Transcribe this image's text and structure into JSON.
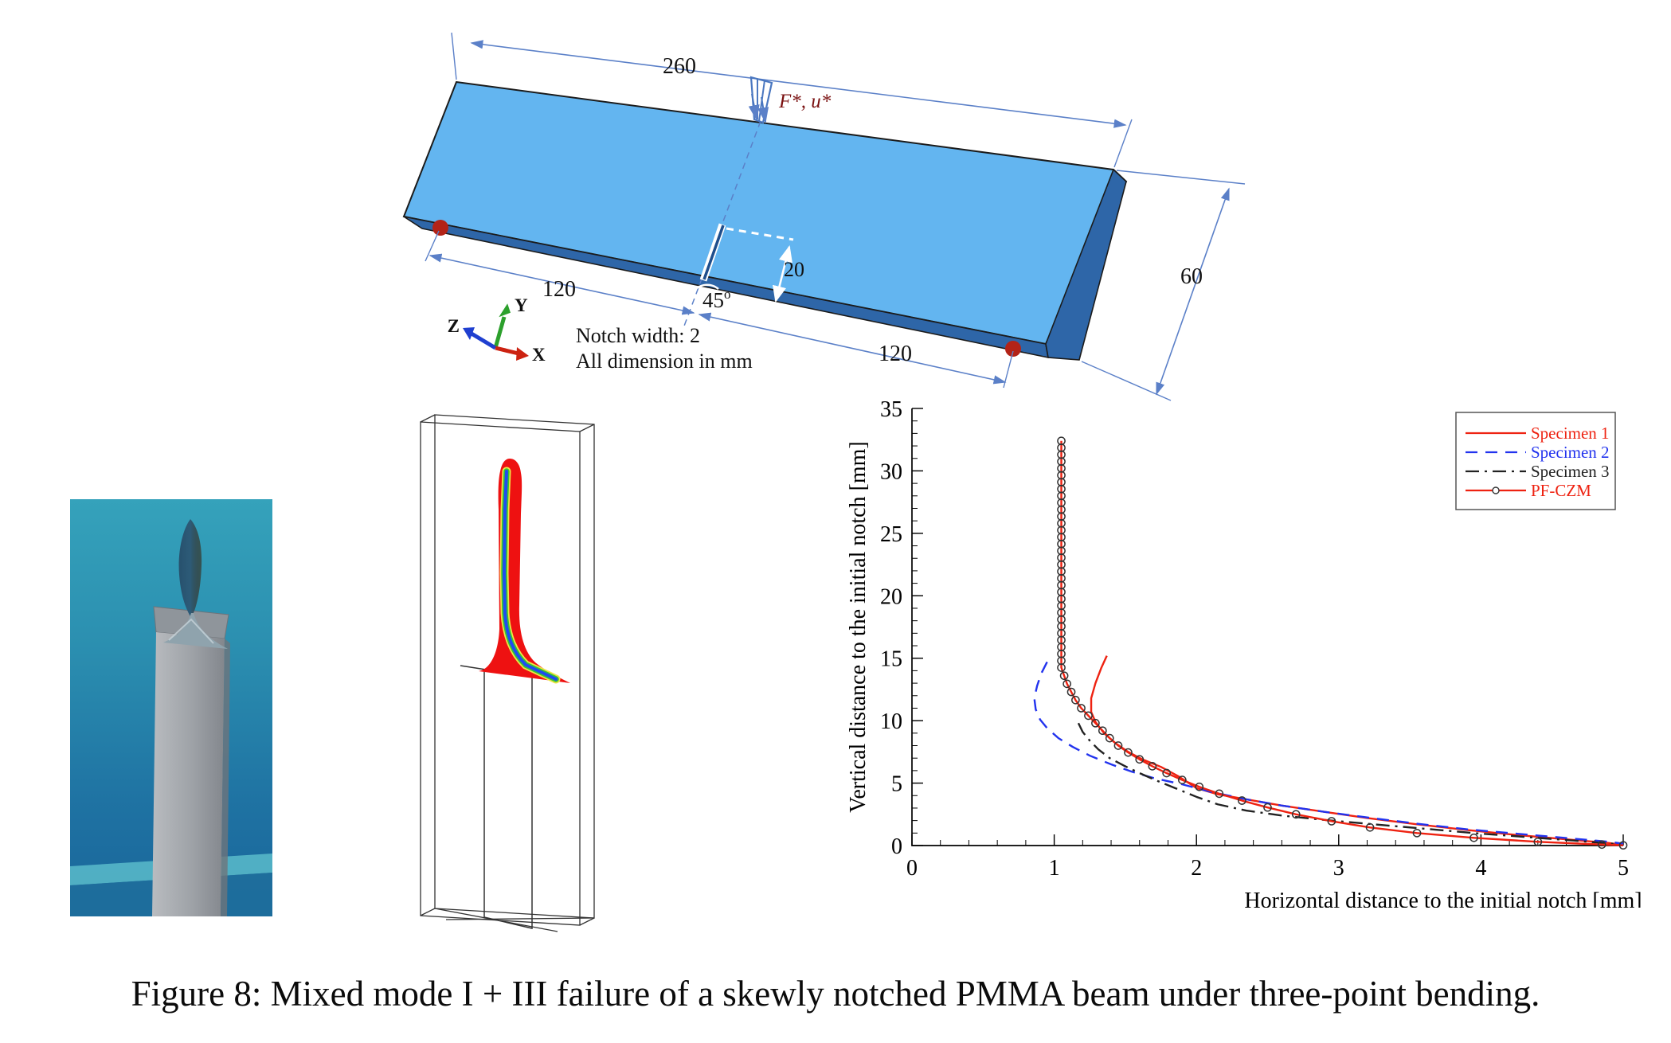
{
  "figure": {
    "caption": "Figure 8: Mixed mode I + III failure of a skewly notched PMMA beam under three-point bending."
  },
  "beam": {
    "labels": {
      "total": "260",
      "left_span": "120",
      "right_span": "120",
      "depth": "60",
      "notch_depth": "20",
      "angle": "45",
      "degree": "o",
      "load": "F*, u*",
      "note1": "Notch width: 2",
      "note2": "All dimension in mm",
      "x": "X",
      "y": "Y",
      "z": "Z"
    },
    "colors": {
      "top_face": "#63b5f0",
      "front_face": "#2e66a8",
      "dim_line": "#5b80c8",
      "support_dot": "#b32317",
      "load_label": "#7a1010",
      "axis_x": "#cc2211",
      "axis_y": "#2ca02c",
      "axis_z": "#1f3fd0"
    }
  },
  "photo": {
    "colors": {
      "background_top": "#35a2bb",
      "background_bottom": "#19659a",
      "column_light": "#b9bcc0",
      "column_dark": "#83878d",
      "blade": "#2d5b78",
      "fan": "#8fa3ad",
      "band": "#57b7c8"
    }
  },
  "simulation": {
    "colors": {
      "wireframe": "#333333",
      "crack": "#ee1111",
      "stripe_core": "#1f4cf0",
      "stripe_mid": "#35c435",
      "stripe_halo": "#f0e546"
    }
  },
  "chart_data": {
    "type": "line",
    "title": "",
    "xlabel": "Horizontal distance to the initial notch [mm]",
    "ylabel": "Vertical distance to the initial notch [mm]",
    "xlim": [
      0,
      5
    ],
    "ylim": [
      0,
      35
    ],
    "xticks": [
      0,
      1,
      2,
      3,
      4,
      5
    ],
    "yticks": [
      0,
      5,
      10,
      15,
      20,
      25,
      30,
      35
    ],
    "x_minor_step": 0.2,
    "y_minor_step": 1,
    "grid": false,
    "legend": {
      "position": "top-right",
      "border": true
    },
    "series": [
      {
        "name": "Specimen 1",
        "color": "#ee2211",
        "style": "solid",
        "points": [
          [
            1.37,
            15.2
          ],
          [
            1.33,
            14.2
          ],
          [
            1.29,
            13.0
          ],
          [
            1.26,
            11.8
          ],
          [
            1.26,
            10.7
          ],
          [
            1.29,
            9.9
          ],
          [
            1.35,
            9.0
          ],
          [
            1.43,
            8.2
          ],
          [
            1.52,
            7.5
          ],
          [
            1.62,
            6.9
          ],
          [
            1.75,
            6.3
          ],
          [
            1.88,
            5.5
          ],
          [
            2.0,
            4.6
          ],
          [
            2.15,
            4.1
          ],
          [
            2.35,
            3.7
          ],
          [
            2.6,
            3.2
          ],
          [
            2.9,
            2.7
          ],
          [
            3.2,
            2.2
          ],
          [
            3.55,
            1.7
          ],
          [
            3.9,
            1.25
          ],
          [
            4.25,
            0.85
          ],
          [
            4.6,
            0.5
          ],
          [
            4.9,
            0.2
          ],
          [
            5.0,
            0.05
          ]
        ]
      },
      {
        "name": "Specimen 2",
        "color": "#2233ee",
        "style": "dashed",
        "points": [
          [
            0.95,
            14.7
          ],
          [
            0.91,
            13.8
          ],
          [
            0.88,
            12.8
          ],
          [
            0.86,
            11.8
          ],
          [
            0.87,
            10.9
          ],
          [
            0.9,
            10.1
          ],
          [
            0.95,
            9.4
          ],
          [
            1.03,
            8.6
          ],
          [
            1.13,
            7.9
          ],
          [
            1.25,
            7.2
          ],
          [
            1.4,
            6.5
          ],
          [
            1.55,
            5.9
          ],
          [
            1.7,
            5.4
          ],
          [
            1.9,
            4.9
          ],
          [
            2.1,
            4.3
          ],
          [
            2.35,
            3.7
          ],
          [
            2.6,
            3.2
          ],
          [
            2.9,
            2.7
          ],
          [
            3.2,
            2.25
          ],
          [
            3.55,
            1.75
          ],
          [
            3.9,
            1.3
          ],
          [
            4.25,
            0.95
          ],
          [
            4.6,
            0.6
          ],
          [
            4.9,
            0.3
          ],
          [
            5.0,
            0.15
          ]
        ]
      },
      {
        "name": "Specimen 3",
        "color": "#222222",
        "style": "dashdot",
        "points": [
          [
            1.17,
            9.8
          ],
          [
            1.2,
            9.1
          ],
          [
            1.25,
            8.4
          ],
          [
            1.31,
            7.7
          ],
          [
            1.39,
            7.0
          ],
          [
            1.49,
            6.4
          ],
          [
            1.6,
            5.8
          ],
          [
            1.72,
            5.2
          ],
          [
            1.85,
            4.6
          ],
          [
            2.0,
            3.9
          ],
          [
            2.15,
            3.3
          ],
          [
            2.35,
            2.8
          ],
          [
            2.6,
            2.4
          ],
          [
            2.9,
            2.05
          ],
          [
            3.25,
            1.7
          ],
          [
            3.6,
            1.35
          ],
          [
            3.95,
            1.0
          ],
          [
            4.3,
            0.7
          ],
          [
            4.65,
            0.4
          ],
          [
            4.95,
            0.12
          ]
        ]
      },
      {
        "name": "PF-CZM",
        "color": "#ee2211",
        "style": "solid-marker",
        "marker": "circle",
        "marker_edge": "#333333",
        "points": [
          [
            1.05,
            32.4
          ],
          [
            1.05,
            31.85
          ],
          [
            1.05,
            31.3
          ],
          [
            1.05,
            30.75
          ],
          [
            1.05,
            30.2
          ],
          [
            1.05,
            29.65
          ],
          [
            1.05,
            29.1
          ],
          [
            1.05,
            28.55
          ],
          [
            1.05,
            28.0
          ],
          [
            1.05,
            27.45
          ],
          [
            1.05,
            26.9
          ],
          [
            1.05,
            26.35
          ],
          [
            1.05,
            25.8
          ],
          [
            1.05,
            25.25
          ],
          [
            1.05,
            24.7
          ],
          [
            1.05,
            24.15
          ],
          [
            1.05,
            23.6
          ],
          [
            1.05,
            23.05
          ],
          [
            1.05,
            22.5
          ],
          [
            1.05,
            21.95
          ],
          [
            1.05,
            21.4
          ],
          [
            1.05,
            20.85
          ],
          [
            1.05,
            20.3
          ],
          [
            1.05,
            19.75
          ],
          [
            1.05,
            19.2
          ],
          [
            1.05,
            18.65
          ],
          [
            1.05,
            18.1
          ],
          [
            1.05,
            17.55
          ],
          [
            1.05,
            17.0
          ],
          [
            1.05,
            16.45
          ],
          [
            1.05,
            15.9
          ],
          [
            1.05,
            15.35
          ],
          [
            1.05,
            14.8
          ],
          [
            1.05,
            14.25
          ],
          [
            1.07,
            13.6
          ],
          [
            1.09,
            12.95
          ],
          [
            1.12,
            12.3
          ],
          [
            1.15,
            11.65
          ],
          [
            1.19,
            11.0
          ],
          [
            1.24,
            10.4
          ],
          [
            1.29,
            9.8
          ],
          [
            1.34,
            9.2
          ],
          [
            1.39,
            8.6
          ],
          [
            1.45,
            8.0
          ],
          [
            1.52,
            7.45
          ],
          [
            1.6,
            6.9
          ],
          [
            1.69,
            6.35
          ],
          [
            1.79,
            5.8
          ],
          [
            1.9,
            5.25
          ],
          [
            2.02,
            4.7
          ],
          [
            2.16,
            4.15
          ],
          [
            2.32,
            3.6
          ],
          [
            2.5,
            3.05
          ],
          [
            2.7,
            2.5
          ],
          [
            2.95,
            1.95
          ],
          [
            3.22,
            1.45
          ],
          [
            3.55,
            1.0
          ],
          [
            3.95,
            0.62
          ],
          [
            4.4,
            0.3
          ],
          [
            4.85,
            0.08
          ],
          [
            5.0,
            0.02
          ]
        ]
      }
    ]
  }
}
